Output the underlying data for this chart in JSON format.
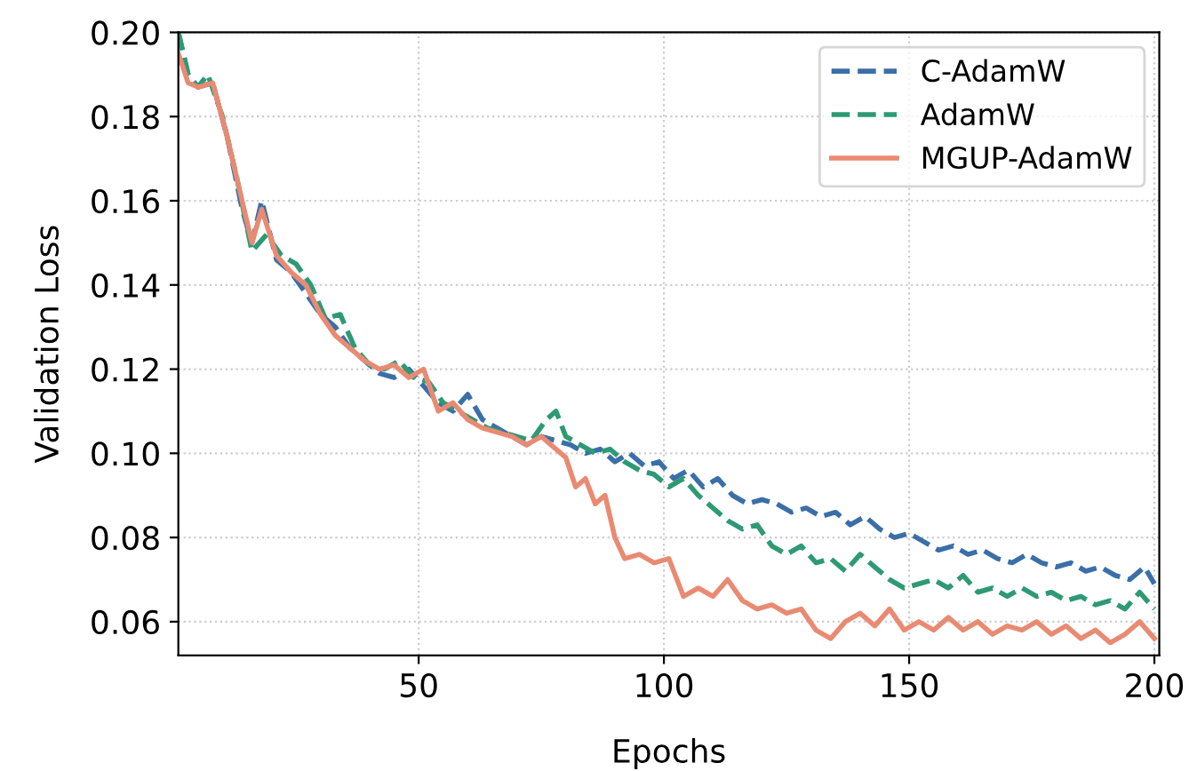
{
  "chart_data": {
    "type": "line",
    "xlabel": "Epochs",
    "ylabel": "Validation Loss",
    "xlim": [
      1,
      201
    ],
    "xticks": [
      50,
      100,
      150,
      200
    ],
    "ylim": [
      0.052,
      0.2
    ],
    "yticks": [
      {
        "value": 0.06,
        "label": "0.06"
      },
      {
        "value": 0.08,
        "label": "0.08"
      },
      {
        "value": 0.1,
        "label": "0.10"
      },
      {
        "value": 0.12,
        "label": "0.12"
      },
      {
        "value": 0.14,
        "label": "0.14"
      },
      {
        "value": 0.16,
        "label": "0.16"
      },
      {
        "value": 0.18,
        "label": "0.18"
      },
      {
        "value": 0.2,
        "label": "0.20"
      }
    ],
    "grid": true,
    "legend": "top right",
    "marker": "none",
    "series": [
      {
        "name": "C-AdamW",
        "color": "#3a6fa8",
        "line_style": "dashed",
        "x": [
          1,
          3,
          5,
          8,
          11,
          14,
          16,
          18,
          21,
          24,
          27,
          30,
          33,
          36,
          39,
          42,
          45,
          48,
          51,
          54,
          57,
          60,
          63,
          66,
          69,
          72,
          75,
          78,
          81,
          84,
          87,
          90,
          93,
          96,
          99,
          102,
          105,
          108,
          111,
          114,
          117,
          120,
          123,
          126,
          129,
          132,
          135,
          138,
          141,
          144,
          147,
          150,
          153,
          156,
          159,
          162,
          165,
          168,
          171,
          174,
          177,
          180,
          183,
          186,
          189,
          192,
          195,
          198,
          200
        ],
        "values": [
          0.2,
          0.19,
          0.187,
          0.188,
          0.175,
          0.158,
          0.15,
          0.16,
          0.146,
          0.143,
          0.138,
          0.133,
          0.13,
          0.125,
          0.122,
          0.119,
          0.118,
          0.12,
          0.116,
          0.112,
          0.11,
          0.114,
          0.108,
          0.106,
          0.104,
          0.102,
          0.104,
          0.103,
          0.102,
          0.1,
          0.101,
          0.098,
          0.1,
          0.097,
          0.098,
          0.094,
          0.096,
          0.092,
          0.094,
          0.09,
          0.088,
          0.089,
          0.088,
          0.086,
          0.087,
          0.085,
          0.086,
          0.083,
          0.085,
          0.082,
          0.08,
          0.081,
          0.079,
          0.077,
          0.078,
          0.076,
          0.077,
          0.075,
          0.074,
          0.076,
          0.074,
          0.073,
          0.074,
          0.072,
          0.073,
          0.071,
          0.07,
          0.073,
          0.069
        ]
      },
      {
        "name": "AdamW",
        "color": "#2e9a74",
        "line_style": "dashed",
        "x": [
          1,
          3,
          5,
          7,
          10,
          13,
          16,
          19,
          22,
          25,
          28,
          31,
          34,
          37,
          40,
          43,
          46,
          49,
          52,
          55,
          58,
          61,
          64,
          67,
          70,
          73,
          76,
          78,
          80,
          83,
          86,
          89,
          92,
          95,
          98,
          101,
          104,
          107,
          110,
          113,
          116,
          119,
          122,
          125,
          128,
          131,
          134,
          137,
          140,
          143,
          146,
          149,
          152,
          155,
          158,
          161,
          164,
          167,
          170,
          173,
          176,
          179,
          182,
          185,
          188,
          191,
          194,
          197,
          200
        ],
        "values": [
          0.2,
          0.19,
          0.187,
          0.19,
          0.18,
          0.165,
          0.148,
          0.152,
          0.147,
          0.145,
          0.14,
          0.132,
          0.133,
          0.125,
          0.121,
          0.12,
          0.122,
          0.118,
          0.117,
          0.112,
          0.11,
          0.108,
          0.106,
          0.105,
          0.104,
          0.103,
          0.108,
          0.11,
          0.104,
          0.102,
          0.1,
          0.101,
          0.098,
          0.096,
          0.095,
          0.092,
          0.094,
          0.09,
          0.087,
          0.084,
          0.082,
          0.083,
          0.078,
          0.076,
          0.078,
          0.074,
          0.075,
          0.072,
          0.076,
          0.073,
          0.07,
          0.068,
          0.069,
          0.07,
          0.068,
          0.071,
          0.067,
          0.068,
          0.066,
          0.068,
          0.066,
          0.067,
          0.065,
          0.066,
          0.064,
          0.065,
          0.063,
          0.067,
          0.063
        ]
      },
      {
        "name": "MGUP-AdamW",
        "color": "#e98a72",
        "line_style": "solid",
        "x": [
          1,
          3,
          5,
          8,
          11,
          14,
          16,
          18,
          21,
          24,
          27,
          30,
          33,
          36,
          39,
          42,
          45,
          48,
          51,
          54,
          57,
          60,
          63,
          66,
          69,
          72,
          75,
          78,
          80,
          82,
          84,
          86,
          88,
          90,
          92,
          95,
          98,
          101,
          104,
          107,
          110,
          113,
          116,
          119,
          122,
          125,
          128,
          131,
          134,
          137,
          140,
          143,
          146,
          149,
          152,
          155,
          158,
          161,
          164,
          167,
          170,
          173,
          176,
          179,
          182,
          185,
          188,
          191,
          194,
          197,
          200
        ],
        "values": [
          0.195,
          0.188,
          0.187,
          0.188,
          0.175,
          0.16,
          0.15,
          0.158,
          0.147,
          0.143,
          0.14,
          0.133,
          0.128,
          0.125,
          0.122,
          0.12,
          0.121,
          0.118,
          0.12,
          0.11,
          0.112,
          0.108,
          0.106,
          0.105,
          0.104,
          0.102,
          0.104,
          0.101,
          0.099,
          0.092,
          0.094,
          0.088,
          0.09,
          0.08,
          0.075,
          0.076,
          0.074,
          0.075,
          0.066,
          0.068,
          0.066,
          0.07,
          0.065,
          0.063,
          0.064,
          0.062,
          0.063,
          0.058,
          0.056,
          0.06,
          0.062,
          0.059,
          0.063,
          0.058,
          0.06,
          0.058,
          0.061,
          0.058,
          0.06,
          0.057,
          0.059,
          0.058,
          0.06,
          0.057,
          0.059,
          0.056,
          0.058,
          0.055,
          0.057,
          0.06,
          0.056
        ]
      }
    ]
  }
}
